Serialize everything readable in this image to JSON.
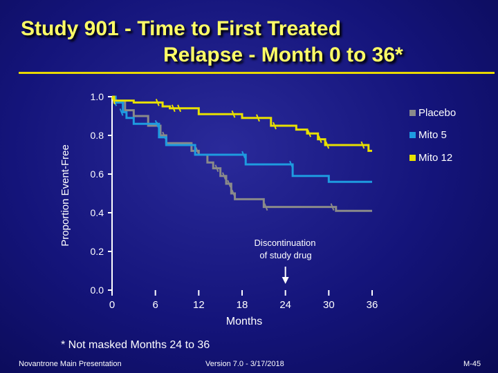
{
  "slide": {
    "title_line1": "Study 901 - Time to First Treated",
    "title_line2": "Relapse - Month 0 to 36*",
    "footnote": "* Not masked Months 24 to 36",
    "footer_left": "Novantrone Main Presentation",
    "footer_center": "Version 7.0 - 3/17/2018",
    "footer_right": "M-45"
  },
  "chart_data": {
    "type": "line",
    "title": "Study 901 - Time to First Treated Relapse - Month 0 to 36*",
    "xlabel": "Months",
    "ylabel": "Proportion Event-Free",
    "xlim": [
      0,
      36
    ],
    "ylim": [
      0,
      1.0
    ],
    "xticks": [
      "0",
      "6",
      "12",
      "18",
      "24",
      "30",
      "36"
    ],
    "yticks": [
      "0.0",
      "0.2",
      "0.4",
      "0.6",
      "0.8",
      "1.0"
    ],
    "annotation": {
      "text_line1": "Discontinuation",
      "text_line2": "of study drug",
      "x": 24
    },
    "legend": [
      "Placebo",
      "Mito 5",
      "Mito 12"
    ],
    "series": [
      {
        "name": "Placebo",
        "color": "#8a8a8a",
        "points": [
          [
            0,
            1.0
          ],
          [
            0.3,
            0.97
          ],
          [
            1,
            0.97
          ],
          [
            1.8,
            0.93
          ],
          [
            3,
            0.9
          ],
          [
            5,
            0.85
          ],
          [
            6.7,
            0.8
          ],
          [
            7.5,
            0.76
          ],
          [
            10,
            0.76
          ],
          [
            11,
            0.72
          ],
          [
            12,
            0.7
          ],
          [
            13.2,
            0.66
          ],
          [
            14,
            0.63
          ],
          [
            15,
            0.59
          ],
          [
            15.8,
            0.55
          ],
          [
            16.5,
            0.5
          ],
          [
            17,
            0.47
          ],
          [
            18.5,
            0.47
          ],
          [
            21,
            0.43
          ],
          [
            29,
            0.43
          ],
          [
            31,
            0.41
          ],
          [
            36,
            0.41
          ]
        ],
        "censored": [
          [
            6.4,
            0.85
          ],
          [
            7.2,
            0.8
          ],
          [
            11.8,
            0.72
          ],
          [
            14.5,
            0.63
          ],
          [
            15.5,
            0.59
          ],
          [
            16.2,
            0.55
          ],
          [
            16.8,
            0.5
          ],
          [
            21.3,
            0.43
          ],
          [
            30.5,
            0.43
          ]
        ]
      },
      {
        "name": "Mito 5",
        "color": "#1e9be0",
        "points": [
          [
            0,
            1.0
          ],
          [
            0.5,
            0.97
          ],
          [
            1.5,
            0.92
          ],
          [
            2,
            0.89
          ],
          [
            3,
            0.86
          ],
          [
            5.5,
            0.86
          ],
          [
            6.5,
            0.79
          ],
          [
            7.5,
            0.75
          ],
          [
            10,
            0.75
          ],
          [
            11.5,
            0.7
          ],
          [
            14,
            0.7
          ],
          [
            17,
            0.7
          ],
          [
            18.5,
            0.65
          ],
          [
            22,
            0.65
          ],
          [
            25,
            0.59
          ],
          [
            29,
            0.59
          ],
          [
            30,
            0.56
          ],
          [
            36,
            0.56
          ]
        ],
        "censored": [
          [
            0.4,
            0.97
          ],
          [
            1.3,
            0.92
          ],
          [
            6.2,
            0.86
          ],
          [
            18.2,
            0.7
          ],
          [
            24.8,
            0.65
          ]
        ]
      },
      {
        "name": "Mito 12",
        "color": "#e8e000",
        "points": [
          [
            0,
            1.0
          ],
          [
            0.3,
            0.98
          ],
          [
            2.5,
            0.98
          ],
          [
            3,
            0.97
          ],
          [
            6,
            0.97
          ],
          [
            7,
            0.95
          ],
          [
            8,
            0.94
          ],
          [
            11,
            0.94
          ],
          [
            12,
            0.91
          ],
          [
            17,
            0.91
          ],
          [
            18,
            0.89
          ],
          [
            20.5,
            0.89
          ],
          [
            22,
            0.85
          ],
          [
            25.5,
            0.83
          ],
          [
            27,
            0.81
          ],
          [
            28.5,
            0.78
          ],
          [
            29.5,
            0.75
          ],
          [
            35,
            0.75
          ],
          [
            35.5,
            0.72
          ],
          [
            36,
            0.72
          ]
        ],
        "censored": [
          [
            0.2,
            0.98
          ],
          [
            6.3,
            0.97
          ],
          [
            8.5,
            0.94
          ],
          [
            9.3,
            0.94
          ],
          [
            16.8,
            0.91
          ],
          [
            20.2,
            0.89
          ],
          [
            22.5,
            0.85
          ],
          [
            27.3,
            0.81
          ],
          [
            28.8,
            0.78
          ],
          [
            29.8,
            0.75
          ],
          [
            34.7,
            0.75
          ]
        ]
      }
    ]
  }
}
